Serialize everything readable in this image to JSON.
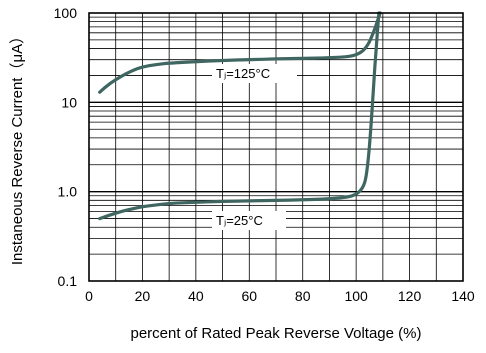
{
  "chart_data": {
    "type": "line",
    "title": "",
    "xlabel": "percent of Rated  Peak Reverse Voltage (%)",
    "ylabel": "Instaneous Reverse Current（μA）",
    "xlim": [
      0,
      140
    ],
    "ylim": [
      0.1,
      100
    ],
    "yscale": "log",
    "grid": true,
    "x_ticks": [
      "0",
      "20",
      "40",
      "60",
      "80",
      "100",
      "120",
      "140"
    ],
    "y_ticks": [
      "0.1",
      "1.0",
      "10",
      "100"
    ],
    "series": [
      {
        "name": "Tⱼ=125°C",
        "color": "#3f6661",
        "points": [
          [
            4,
            13
          ],
          [
            8,
            16.5
          ],
          [
            12,
            19.5
          ],
          [
            16,
            22.5
          ],
          [
            20,
            25
          ],
          [
            25,
            26.5
          ],
          [
            30,
            27.5
          ],
          [
            40,
            28.5
          ],
          [
            50,
            29.5
          ],
          [
            60,
            30
          ],
          [
            70,
            30.7
          ],
          [
            80,
            31
          ],
          [
            90,
            31.5
          ],
          [
            98,
            32.5
          ],
          [
            102,
            36
          ],
          [
            104.5,
            44
          ],
          [
            106.5,
            60
          ],
          [
            108,
            82
          ],
          [
            109,
            100
          ]
        ]
      },
      {
        "name": "Tⱼ=25°C",
        "color": "#3f6661",
        "points": [
          [
            4,
            0.5
          ],
          [
            8,
            0.55
          ],
          [
            12,
            0.6
          ],
          [
            16,
            0.64
          ],
          [
            20,
            0.68
          ],
          [
            25,
            0.71
          ],
          [
            30,
            0.74
          ],
          [
            40,
            0.76
          ],
          [
            50,
            0.78
          ],
          [
            60,
            0.79
          ],
          [
            70,
            0.8
          ],
          [
            80,
            0.81
          ],
          [
            90,
            0.83
          ],
          [
            97,
            0.87
          ],
          [
            100,
            0.93
          ],
          [
            102,
            1.05
          ],
          [
            103.5,
            1.3
          ],
          [
            104.5,
            2.2
          ],
          [
            105.5,
            5
          ],
          [
            106.5,
            15
          ],
          [
            107.5,
            40
          ],
          [
            108.5,
            100
          ]
        ]
      }
    ],
    "annotations": [
      "Tⱼ=125°C",
      "Tⱼ=25°C"
    ]
  }
}
